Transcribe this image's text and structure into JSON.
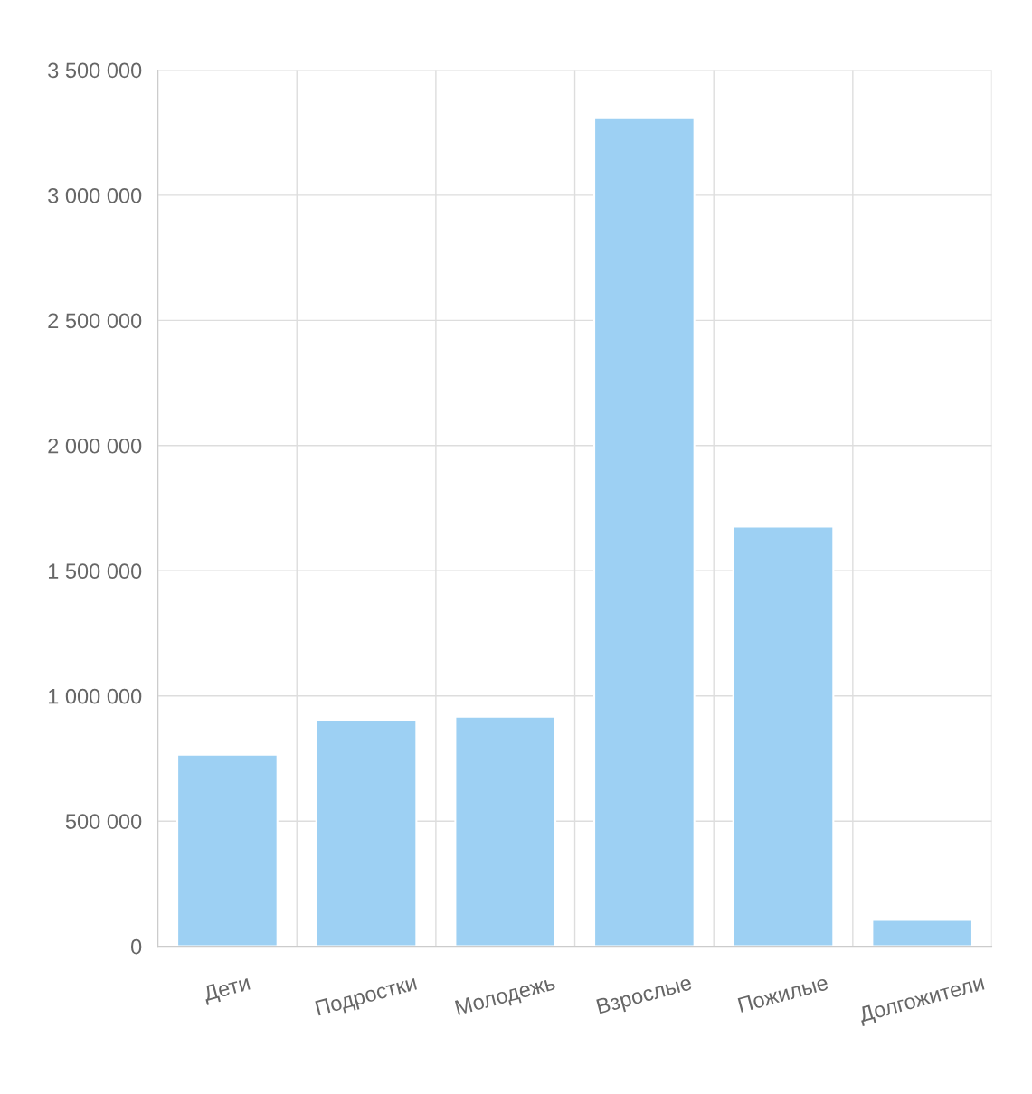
{
  "chart_data": {
    "type": "bar",
    "categories": [
      "Дети",
      "Подростки",
      "Молодежь",
      "Взрослые",
      "Пожилые",
      "Долгожители"
    ],
    "values": [
      765000,
      905000,
      917000,
      3308000,
      1676000,
      105000
    ],
    "color": "#9dd0f3",
    "ylim": [
      0,
      3500000
    ],
    "yticks": [
      0,
      {
        "value": 500000,
        "label": "500 000"
      },
      {
        "value": 1000000,
        "label": "1 000 000"
      },
      {
        "value": 1500000,
        "label": "1 500 000"
      },
      {
        "value": 2000000,
        "label": "2 000 000"
      },
      {
        "value": 2500000,
        "label": "2 500 000"
      },
      {
        "value": 3000000,
        "label": "3 000 000"
      },
      {
        "value": 3500000,
        "label": "3 500 000"
      }
    ],
    "grid": true
  }
}
